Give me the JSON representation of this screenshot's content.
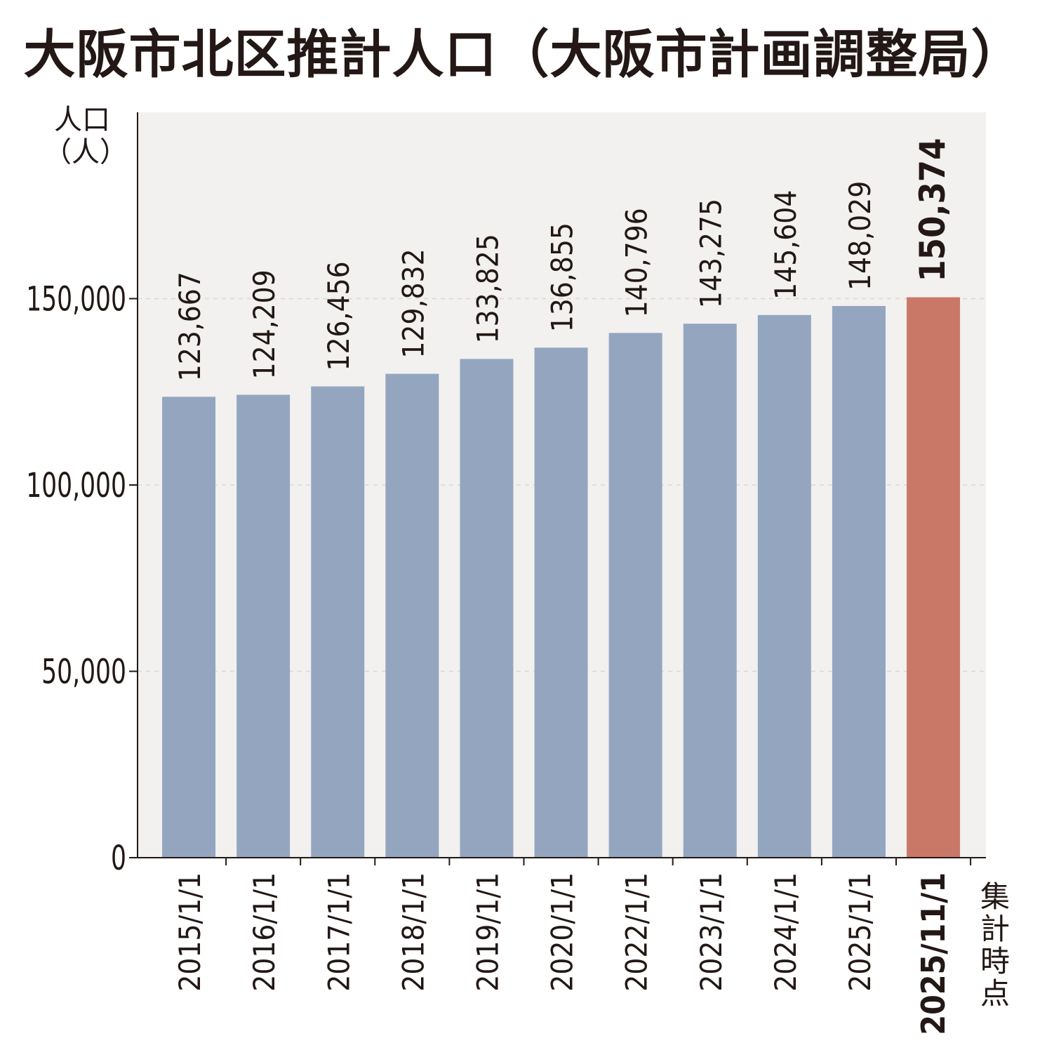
{
  "chart_data": {
    "type": "bar",
    "title": "大阪市北区推計人口（大阪市計画調整局）",
    "ylabel_line1": "人口",
    "ylabel_line2": "（人）",
    "x_note": "集計時点",
    "ylim": [
      0,
      200000
    ],
    "yticks": [
      0,
      50000,
      100000,
      150000
    ],
    "ytick_labels": [
      "0",
      "50,000",
      "100,000",
      "150,000"
    ],
    "grid": true,
    "categories": [
      "2015/1/1",
      "2016/1/1",
      "2017/1/1",
      "2018/1/1",
      "2019/1/1",
      "2020/1/1",
      "2022/1/1",
      "2023/1/1",
      "2024/1/1",
      "2025/1/1",
      "2025/11/1"
    ],
    "values": [
      123667,
      124209,
      126456,
      129832,
      133825,
      136855,
      140796,
      143275,
      145604,
      148029,
      150374
    ],
    "value_labels": [
      "123,667",
      "124,209",
      "126,456",
      "129,832",
      "133,825",
      "136,855",
      "140,796",
      "143,275",
      "145,604",
      "148,029",
      "150,374"
    ],
    "highlight_index": 10,
    "colors": {
      "bar": "#94a6bf",
      "highlight": "#c97868",
      "plot_bg": "#f2f1ef",
      "grid": "#d8d8d8",
      "axis": "#231815"
    }
  }
}
